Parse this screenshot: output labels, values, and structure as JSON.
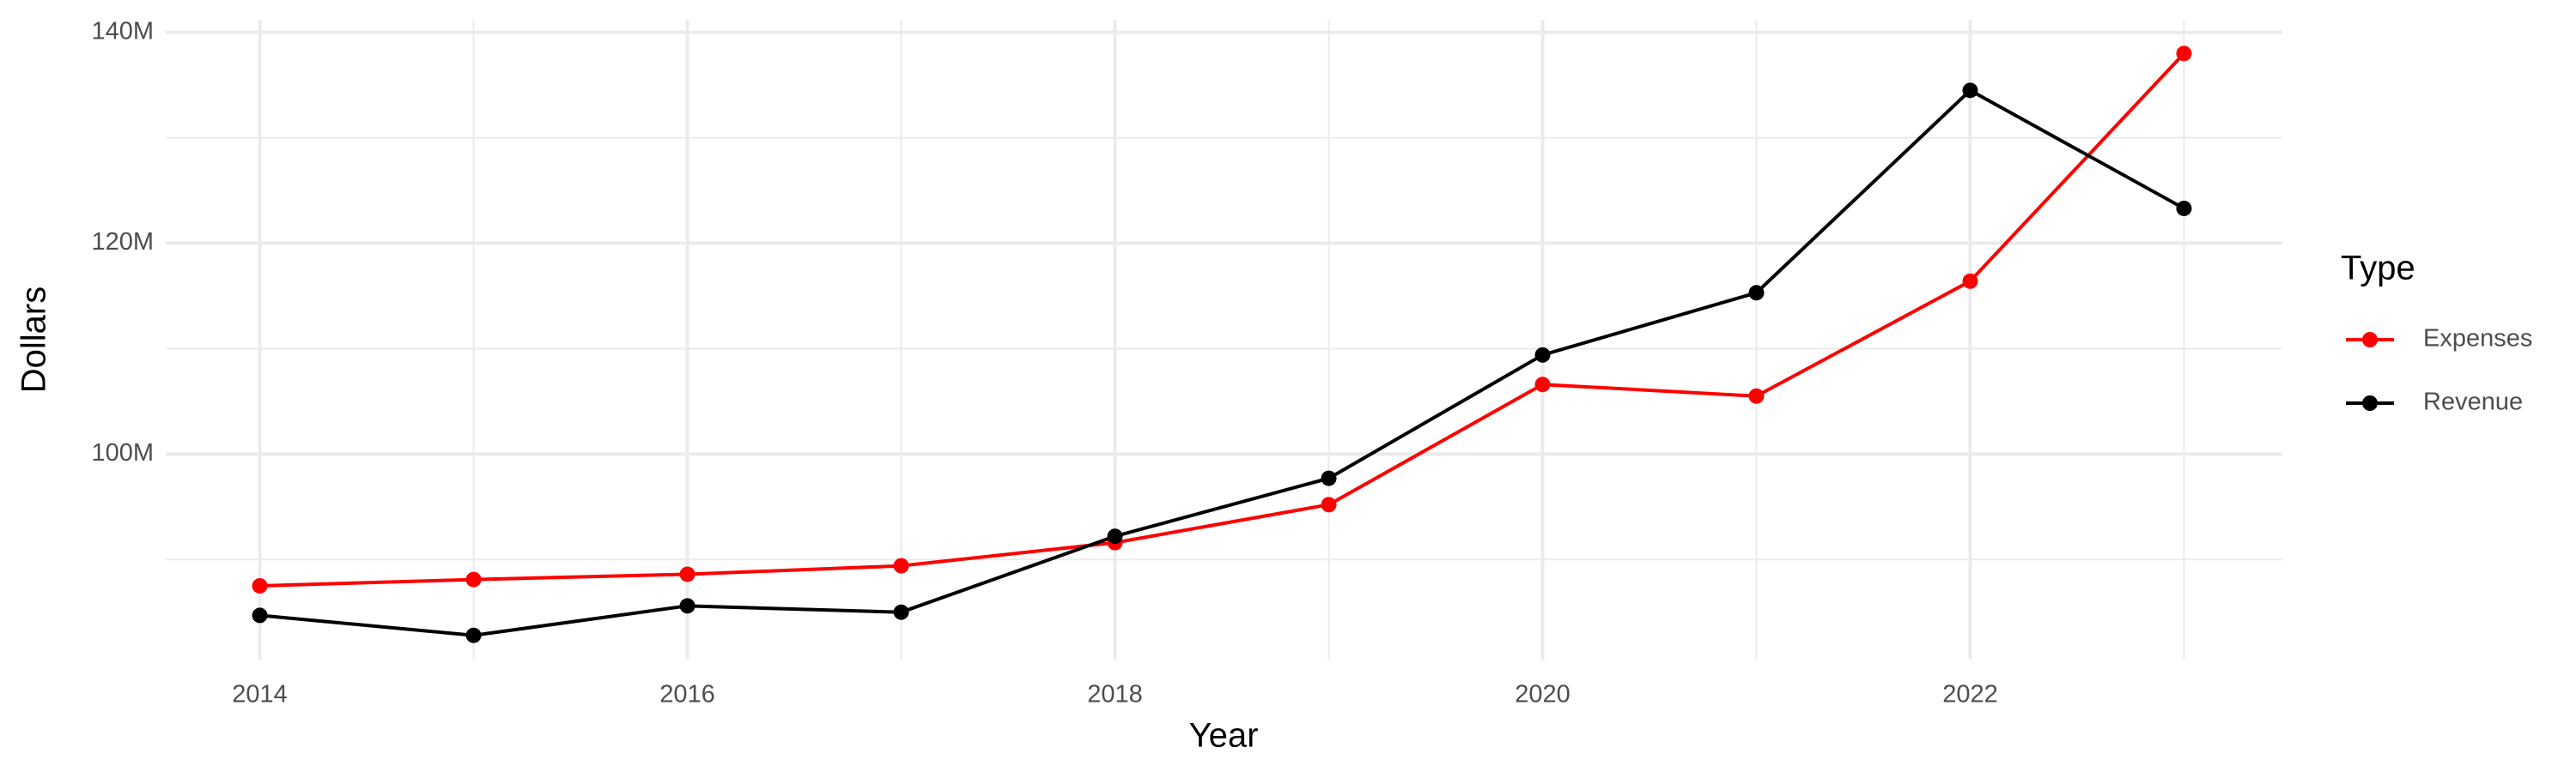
{
  "chart_data": {
    "type": "line",
    "x_label": "Year",
    "y_label": "Dollars",
    "legend_title": "Type",
    "legend_position": "right",
    "grid": true,
    "x": [
      2014,
      2015,
      2016,
      2017,
      2018,
      2019,
      2020,
      2021,
      2022,
      2023
    ],
    "series": [
      {
        "name": "Expenses",
        "color": "#ff0000",
        "values": [
          87500000,
          88100000,
          88600000,
          89400000,
          91600000,
          95200000,
          106600000,
          105500000,
          116400000,
          138000000
        ]
      },
      {
        "name": "Revenue",
        "color": "#000000",
        "values": [
          84700000,
          82800000,
          85600000,
          85000000,
          92200000,
          97700000,
          109400000,
          115300000,
          134500000,
          123300000
        ]
      }
    ],
    "xlim": [
      2013.56,
      2023.46
    ],
    "xticks": [
      2014,
      2016,
      2018,
      2020,
      2022
    ],
    "xticks_minor": [
      2015,
      2017,
      2019,
      2021,
      2023
    ],
    "ylim": [
      80500000,
      141200000
    ],
    "yticks": [
      {
        "value": 100000000,
        "label": "100M"
      },
      {
        "value": 120000000,
        "label": "120M"
      },
      {
        "value": 140000000,
        "label": "140M"
      }
    ],
    "yticks_minor": [
      90000000,
      110000000,
      130000000
    ]
  }
}
